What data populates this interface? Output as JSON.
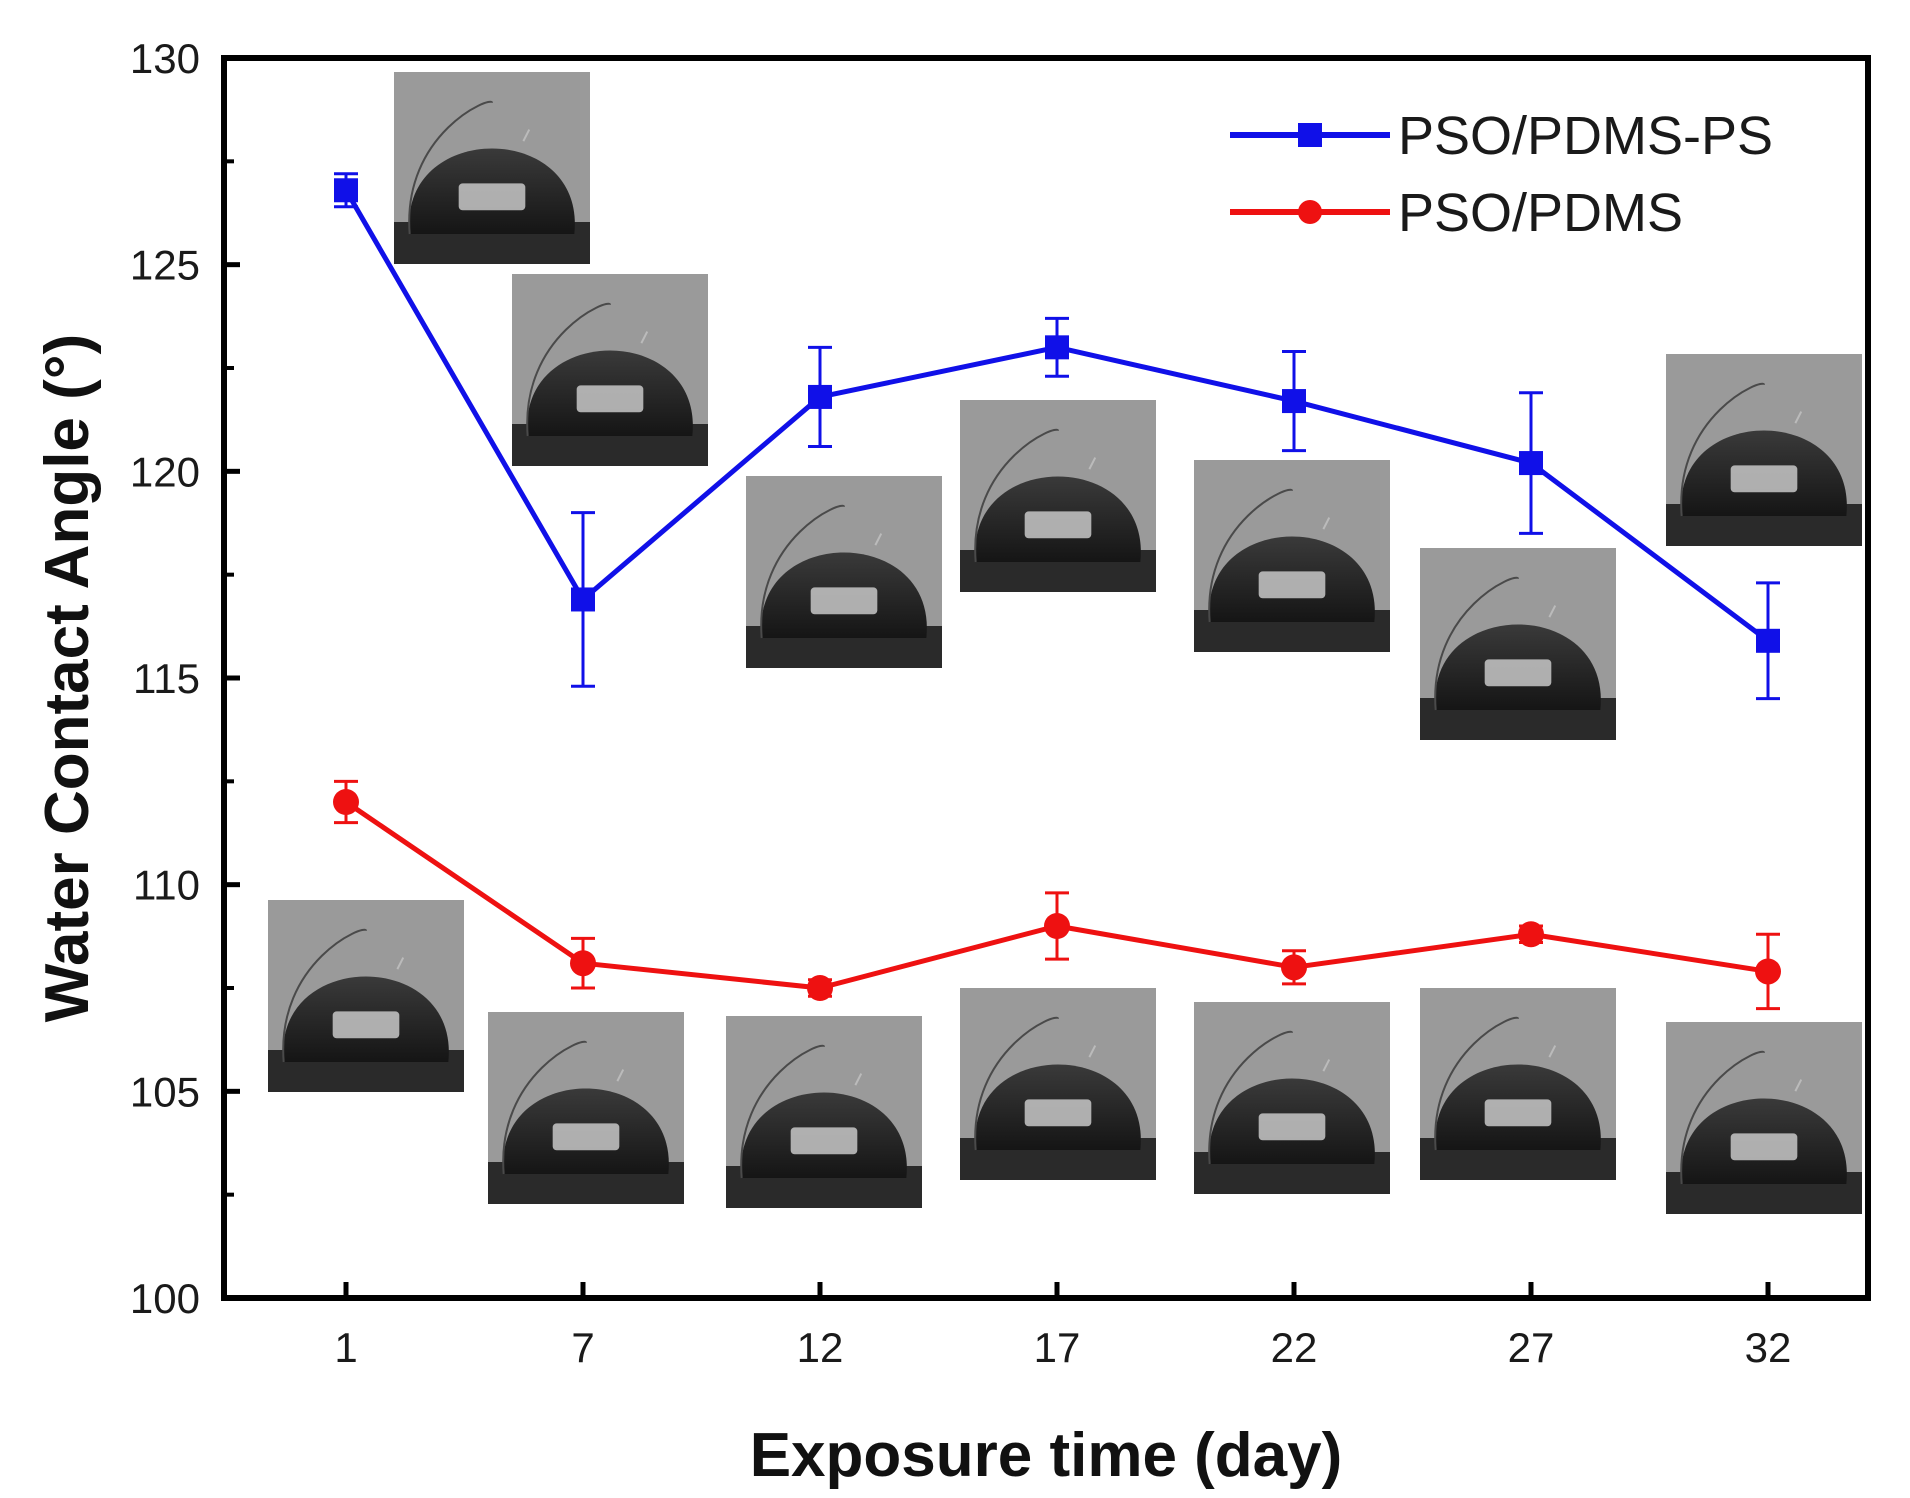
{
  "chart_data": {
    "type": "line",
    "title": "",
    "xlabel": "Exposure time (day)",
    "ylabel": "Water Contact Angle (°)",
    "x": [
      1,
      7,
      12,
      17,
      22,
      27,
      32
    ],
    "x_tick_labels": [
      "1",
      "7",
      "12",
      "17",
      "22",
      "27",
      "32"
    ],
    "y_ticks": [
      100,
      105,
      110,
      115,
      120,
      125,
      130
    ],
    "y_tick_labels": [
      "100",
      "105",
      "110",
      "115",
      "120",
      "125",
      "130"
    ],
    "ylim": [
      100,
      130
    ],
    "grid": false,
    "legend_position": "top-right",
    "series": [
      {
        "name": "PSO/PDMS-PS",
        "color": "#1010e8",
        "marker": "square",
        "values": [
          126.8,
          116.9,
          121.8,
          123.0,
          121.7,
          120.2,
          115.9
        ],
        "errors": [
          0.4,
          2.1,
          1.2,
          0.7,
          1.2,
          1.7,
          1.4
        ]
      },
      {
        "name": "PSO/PDMS",
        "color": "#ee1111",
        "marker": "circle",
        "values": [
          112.0,
          108.1,
          107.5,
          109.0,
          108.0,
          108.8,
          107.9
        ],
        "errors": [
          0.5,
          0.6,
          0.2,
          0.8,
          0.4,
          0.2,
          0.9
        ]
      }
    ],
    "annotations": "inset photographs of water droplets on the surface, one per data point of each series"
  }
}
